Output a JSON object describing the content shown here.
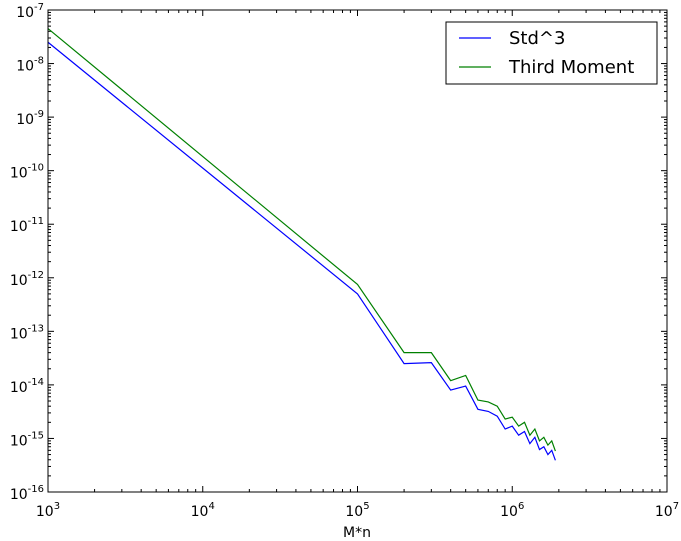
{
  "chart_data": {
    "type": "line",
    "title": "",
    "xlabel": "M*n",
    "ylabel": "",
    "xscale": "log",
    "yscale": "log",
    "xlim": [
      1000,
      10000000
    ],
    "ylim": [
      1e-16,
      1e-07
    ],
    "x_ticks": [
      {
        "value": 1000,
        "base": "10",
        "exp": "3"
      },
      {
        "value": 10000,
        "base": "10",
        "exp": "4"
      },
      {
        "value": 100000,
        "base": "10",
        "exp": "5"
      },
      {
        "value": 1000000,
        "base": "10",
        "exp": "6"
      },
      {
        "value": 10000000,
        "base": "10",
        "exp": "7"
      }
    ],
    "y_ticks": [
      {
        "value": 1e-07,
        "base": "10",
        "exp": "-7"
      },
      {
        "value": 1e-08,
        "base": "10",
        "exp": "-8"
      },
      {
        "value": 1e-09,
        "base": "10",
        "exp": "-9"
      },
      {
        "value": 1e-10,
        "base": "10",
        "exp": "-10"
      },
      {
        "value": 1e-11,
        "base": "10",
        "exp": "-11"
      },
      {
        "value": 1e-12,
        "base": "10",
        "exp": "-12"
      },
      {
        "value": 1e-13,
        "base": "10",
        "exp": "-13"
      },
      {
        "value": 1e-14,
        "base": "10",
        "exp": "-14"
      },
      {
        "value": 1e-15,
        "base": "10",
        "exp": "-15"
      },
      {
        "value": 1e-16,
        "base": "10",
        "exp": "-16"
      }
    ],
    "grid": false,
    "legend_position": "top-right",
    "series": [
      {
        "name": "Std^3",
        "color": "#0000ff",
        "x": [
          1000,
          100000,
          200000,
          300000,
          400000,
          500000,
          600000,
          700000,
          800000,
          900000,
          1000000,
          1100000,
          1200000,
          1300000,
          1400000,
          1500000,
          1600000,
          1700000,
          1800000,
          1900000
        ],
        "y": [
          2.5e-08,
          5e-13,
          2.5e-14,
          2.6e-14,
          8e-15,
          9.5e-15,
          3.5e-15,
          3.2e-15,
          2.6e-15,
          1.5e-15,
          1.7e-15,
          1.15e-15,
          1.35e-15,
          8e-16,
          1.05e-15,
          6.2e-16,
          7e-16,
          5e-16,
          6e-16,
          3.9e-16
        ]
      },
      {
        "name": "Third Moment",
        "color": "#008000",
        "x": [
          1000,
          100000,
          200000,
          300000,
          400000,
          500000,
          600000,
          700000,
          800000,
          900000,
          1000000,
          1100000,
          1200000,
          1300000,
          1400000,
          1500000,
          1600000,
          1700000,
          1800000,
          1900000
        ],
        "y": [
          4.5e-08,
          7.5e-13,
          4e-14,
          4e-14,
          1.2e-14,
          1.5e-14,
          5.2e-15,
          4.8e-15,
          4e-15,
          2.3e-15,
          2.5e-15,
          1.7e-15,
          2e-15,
          1.15e-15,
          1.5e-15,
          9e-16,
          1.05e-15,
          7.5e-16,
          9e-16,
          5.8e-16
        ]
      }
    ]
  }
}
